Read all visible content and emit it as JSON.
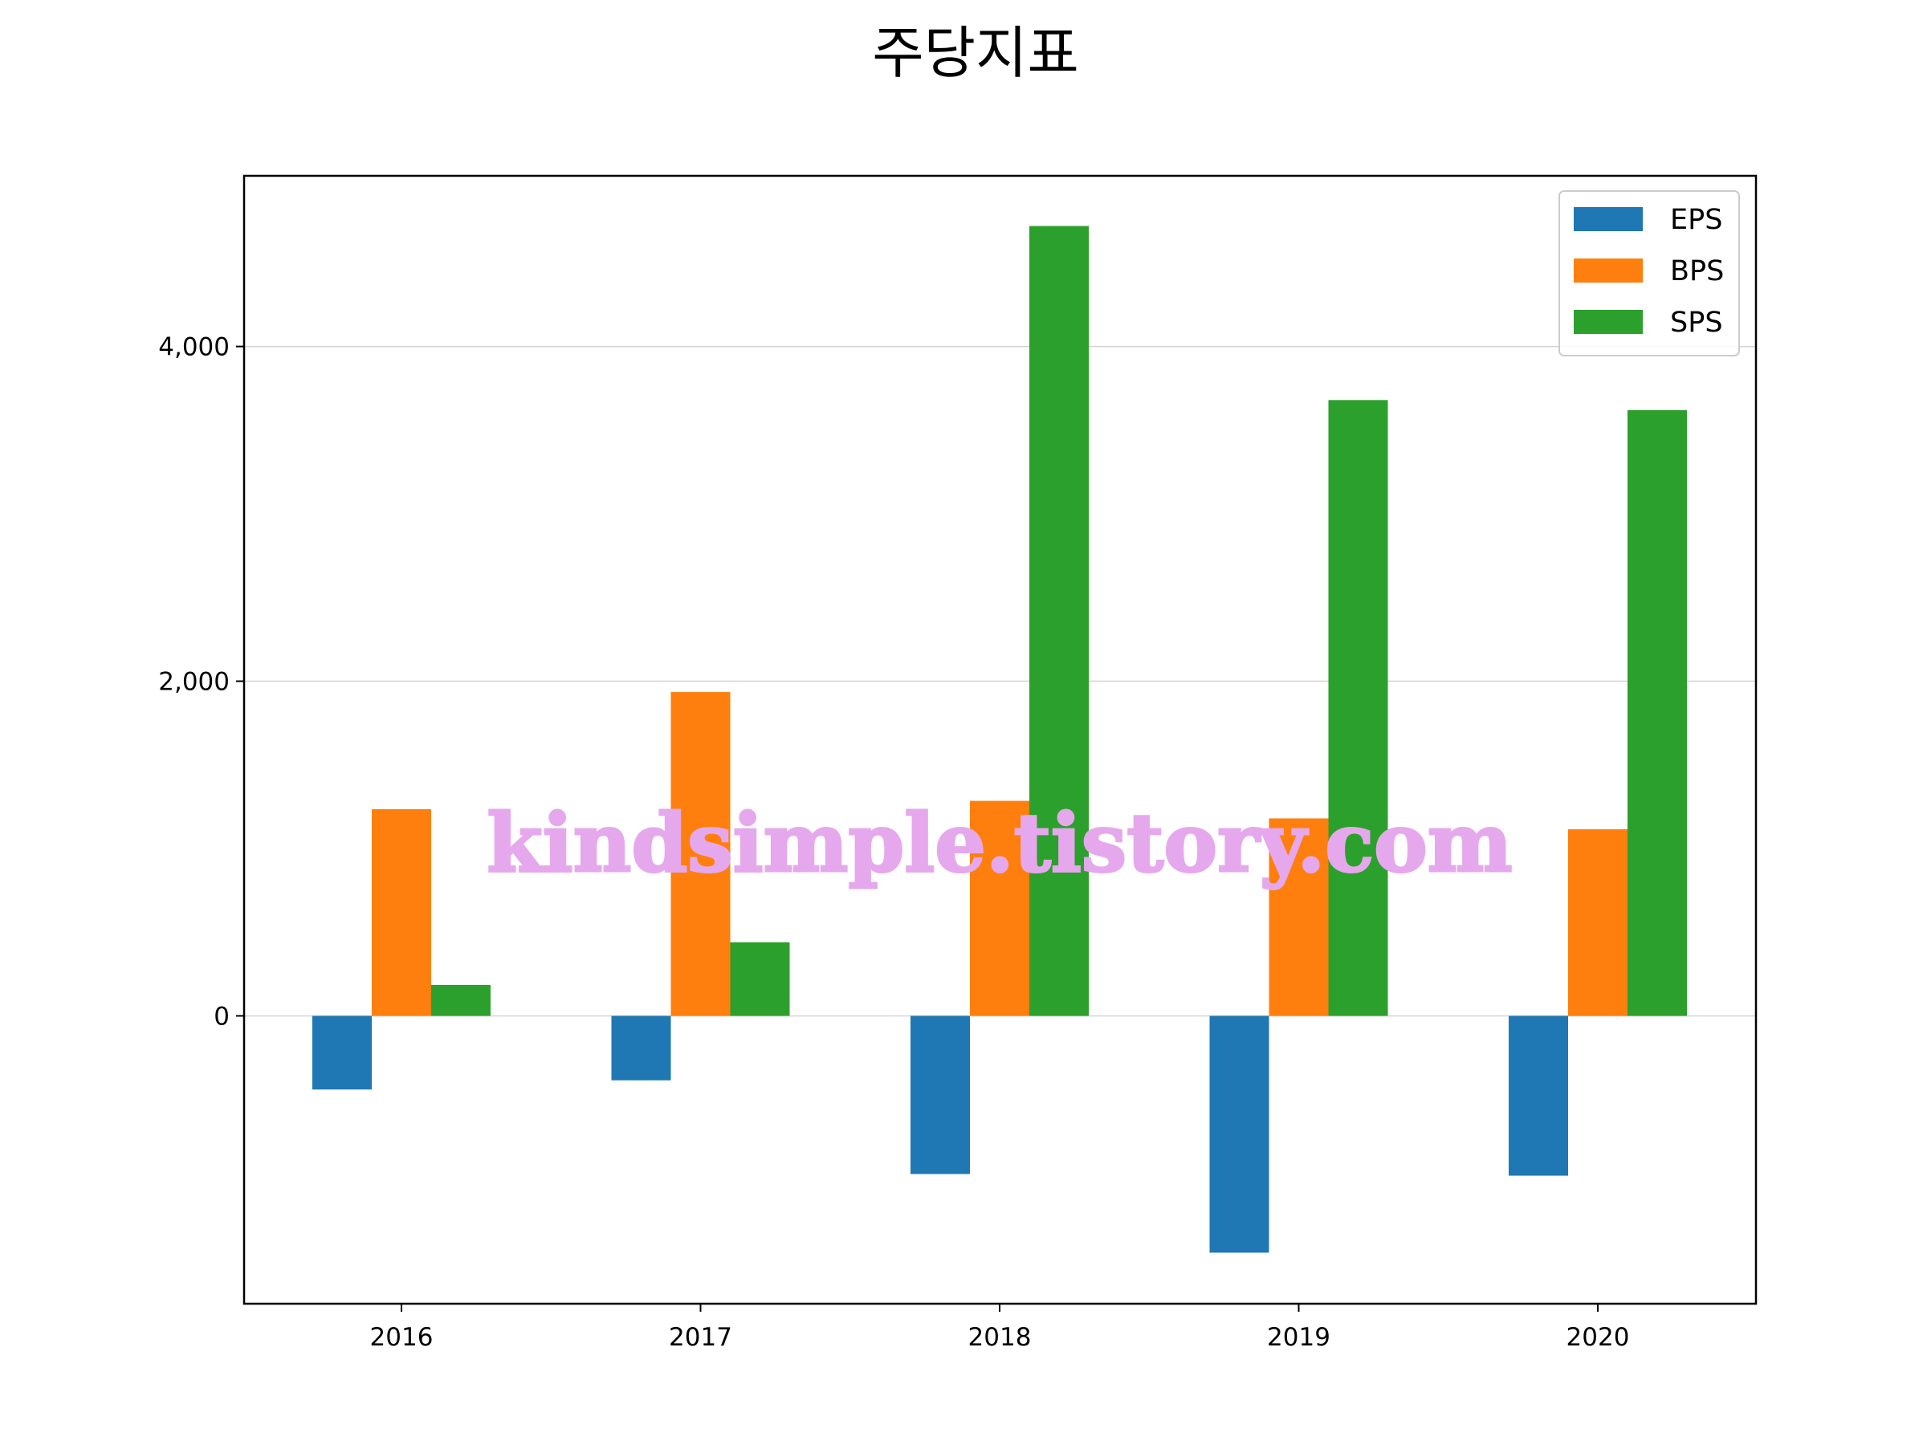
{
  "chart_data": {
    "type": "bar",
    "title": "주당지표",
    "categories": [
      "2016",
      "2017",
      "2018",
      "2019",
      "2020"
    ],
    "series": [
      {
        "name": "EPS",
        "values": [
          -440,
          -385,
          -945,
          -1415,
          -955
        ],
        "color": "#1f77b4"
      },
      {
        "name": "BPS",
        "values": [
          1235,
          1935,
          1285,
          1180,
          1115
        ],
        "color": "#ff7f0e"
      },
      {
        "name": "SPS",
        "values": [
          185,
          440,
          4720,
          3680,
          3620
        ],
        "color": "#2ca02c"
      }
    ],
    "ylim": [
      -1720,
      5020
    ],
    "yticks": [
      0,
      2000,
      4000
    ],
    "ytick_labels": [
      "0",
      "2,000",
      "4,000"
    ],
    "grid": "y",
    "legend": "top-right",
    "xlabel": "",
    "ylabel": ""
  },
  "watermark": "kindsimple.tistory.com"
}
